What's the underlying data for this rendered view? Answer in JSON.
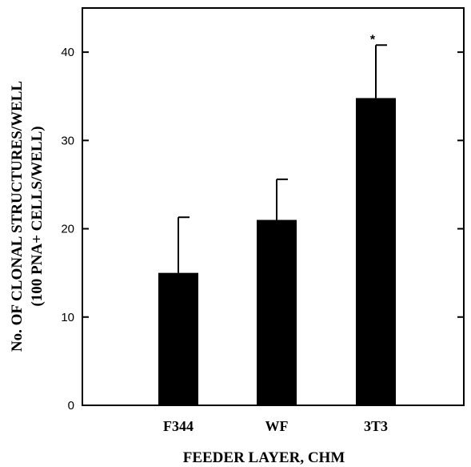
{
  "chart_data": {
    "type": "bar",
    "categories": [
      "F344",
      "WF",
      "3T3"
    ],
    "series": [
      {
        "values": [
          15,
          21,
          34.8
        ]
      }
    ],
    "error_bars_upper": [
      21.3,
      25.6,
      40.8
    ],
    "xlabel": "FEEDER LAYER, CHM",
    "ylabel_line1": "No. OF CLONAL STRUCTURES/WELL",
    "ylabel_line2": "(100 PNA+ CELLS/WELL)",
    "ylim": [
      0,
      45
    ],
    "yticks": [
      0,
      10,
      20,
      30,
      40
    ],
    "annotations": [
      {
        "category": "3T3",
        "text": "*"
      }
    ],
    "bar_color": "#000000",
    "grid": false,
    "legend": "none"
  }
}
